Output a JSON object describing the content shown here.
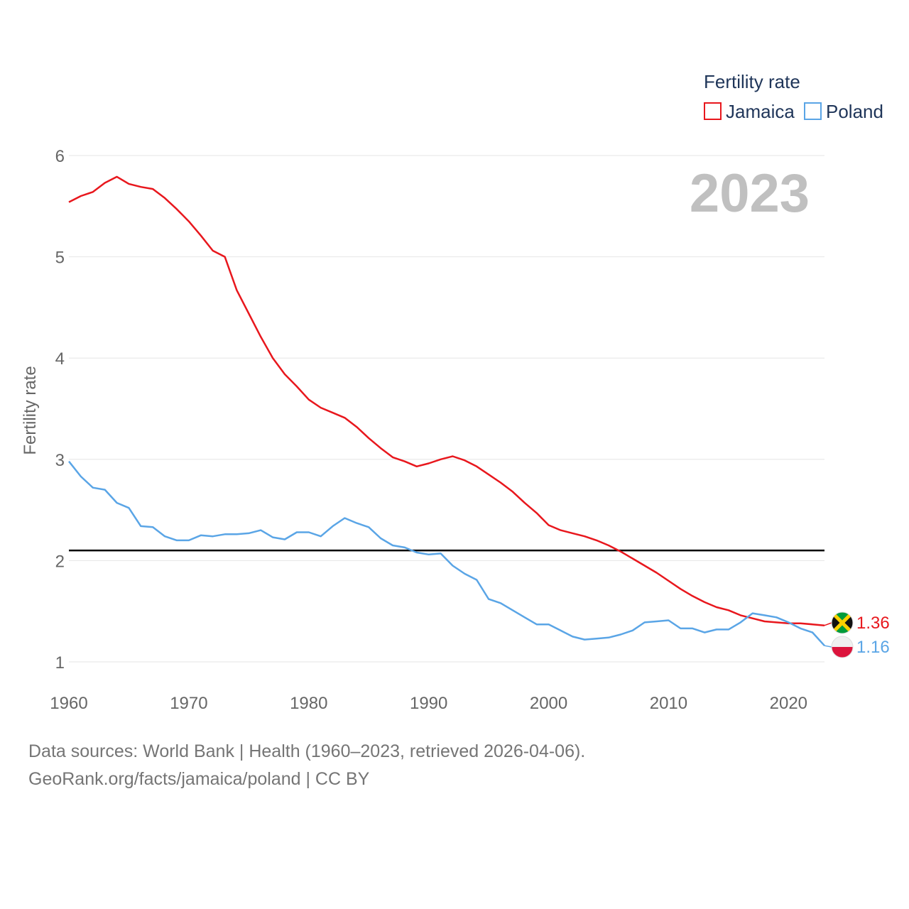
{
  "chart_data": {
    "type": "line",
    "ylabel": "Fertility rate",
    "xlabel": "",
    "xlim": [
      1960,
      2023
    ],
    "ylim": [
      1,
      6
    ],
    "x_ticks": [
      1960,
      1970,
      1980,
      1990,
      2000,
      2010,
      2020
    ],
    "y_ticks": [
      1,
      2,
      3,
      4,
      5,
      6
    ],
    "grid": true,
    "year_label": "2023",
    "legend": {
      "title": "Fertility rate",
      "placement": "top-right"
    },
    "reference_line": {
      "value": 2.1,
      "color": "#000000"
    },
    "x": [
      1960,
      1961,
      1962,
      1963,
      1964,
      1965,
      1966,
      1967,
      1968,
      1969,
      1970,
      1971,
      1972,
      1973,
      1974,
      1975,
      1976,
      1977,
      1978,
      1979,
      1980,
      1981,
      1982,
      1983,
      1984,
      1985,
      1986,
      1987,
      1988,
      1989,
      1990,
      1991,
      1992,
      1993,
      1994,
      1995,
      1996,
      1997,
      1998,
      1999,
      2000,
      2001,
      2002,
      2003,
      2004,
      2005,
      2006,
      2007,
      2008,
      2009,
      2010,
      2011,
      2012,
      2013,
      2014,
      2015,
      2016,
      2017,
      2018,
      2019,
      2020,
      2021,
      2022,
      2023
    ],
    "series": [
      {
        "name": "Jamaica",
        "color": "#e8171d",
        "end_label": "1.36",
        "flag": "jamaica-flag-icon",
        "values": [
          5.54,
          5.6,
          5.64,
          5.73,
          5.79,
          5.72,
          5.69,
          5.67,
          5.58,
          5.47,
          5.35,
          5.21,
          5.06,
          5.0,
          4.67,
          4.44,
          4.21,
          4.0,
          3.84,
          3.72,
          3.59,
          3.51,
          3.46,
          3.41,
          3.32,
          3.21,
          3.11,
          3.02,
          2.98,
          2.93,
          2.96,
          3.0,
          3.03,
          2.99,
          2.93,
          2.85,
          2.77,
          2.68,
          2.57,
          2.47,
          2.35,
          2.3,
          2.27,
          2.24,
          2.2,
          2.15,
          2.09,
          2.02,
          1.95,
          1.88,
          1.8,
          1.72,
          1.65,
          1.59,
          1.54,
          1.51,
          1.46,
          1.43,
          1.4,
          1.39,
          1.38,
          1.38,
          1.37,
          1.36
        ]
      },
      {
        "name": "Poland",
        "color": "#5aa5e6",
        "end_label": "1.16",
        "flag": "poland-flag-icon",
        "values": [
          2.98,
          2.83,
          2.72,
          2.7,
          2.57,
          2.52,
          2.34,
          2.33,
          2.24,
          2.2,
          2.2,
          2.25,
          2.24,
          2.26,
          2.26,
          2.27,
          2.3,
          2.23,
          2.21,
          2.28,
          2.28,
          2.24,
          2.34,
          2.42,
          2.37,
          2.33,
          2.22,
          2.15,
          2.13,
          2.08,
          2.06,
          2.07,
          1.95,
          1.87,
          1.81,
          1.62,
          1.58,
          1.51,
          1.44,
          1.37,
          1.37,
          1.31,
          1.25,
          1.22,
          1.23,
          1.24,
          1.27,
          1.31,
          1.39,
          1.4,
          1.41,
          1.33,
          1.33,
          1.29,
          1.32,
          1.32,
          1.39,
          1.48,
          1.46,
          1.44,
          1.39,
          1.33,
          1.29,
          1.16
        ]
      }
    ]
  },
  "footer": {
    "line1": "Data sources: World Bank | Health (1960–2023, retrieved 2026-04-06).",
    "line2": "GeoRank.org/facts/jamaica/poland | CC BY"
  }
}
